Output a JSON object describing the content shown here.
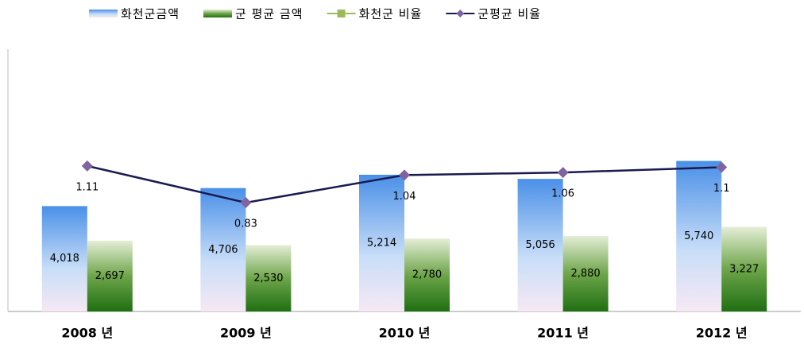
{
  "chart_data": {
    "type": "bar-line",
    "categories": [
      "2008 년",
      "2009 년",
      "2010 년",
      "2011 년",
      "2012 년"
    ],
    "series": [
      {
        "name": "화천군금액",
        "color": "#4a90e8",
        "type": "bar",
        "values": [
          4018,
          4706,
          5214,
          5056,
          5740
        ],
        "value_labels": [
          "4,018",
          "4,706",
          "5,214",
          "5,056",
          "5,740"
        ]
      },
      {
        "name": "군 평균 금액",
        "color": "#2e7d1e",
        "type": "bar",
        "values": [
          2697,
          2530,
          2780,
          2880,
          3227
        ],
        "value_labels": [
          "2,697",
          "2,530",
          "2,780",
          "2,880",
          "3,227"
        ]
      },
      {
        "name": "화천군 비율",
        "color": "#9bbb59",
        "type": "line",
        "axis": "y2",
        "values": [
          null,
          null,
          null,
          null,
          null
        ]
      },
      {
        "name": "군평균 비율",
        "color": "#1a1a50",
        "marker_color": "#8064a2",
        "type": "line",
        "axis": "y2",
        "values": [
          1.11,
          0.83,
          1.04,
          1.06,
          1.1
        ]
      }
    ],
    "ylim": [
      0,
      10000
    ],
    "y2lim": [
      0,
      2
    ],
    "legend": "top"
  }
}
